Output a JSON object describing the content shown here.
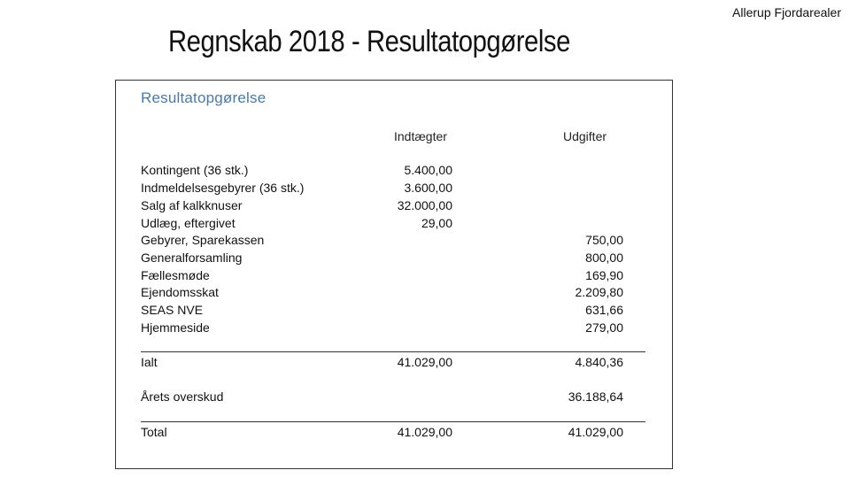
{
  "header": {
    "organization": "Allerup Fjordarealer",
    "title": "Regnskab 2018 - Resultatopgørelse"
  },
  "document": {
    "heading": "Resultatopgørelse",
    "columns": {
      "income": "Indtægter",
      "expenses": "Udgifter"
    },
    "rows": [
      {
        "label": "Kontingent (36 stk.)",
        "income": "5.400,00",
        "expense": ""
      },
      {
        "label": "Indmeldelsesgebyrer (36 stk.)",
        "income": "3.600,00",
        "expense": ""
      },
      {
        "label": "Salg af kalkknuser",
        "income": "32.000,00",
        "expense": ""
      },
      {
        "label": "Udlæg, eftergivet",
        "income": "29,00",
        "expense": ""
      },
      {
        "label": "Gebyrer, Sparekassen",
        "income": "",
        "expense": "750,00"
      },
      {
        "label": "Generalforsamling",
        "income": "",
        "expense": "800,00"
      },
      {
        "label": "Fællesmøde",
        "income": "",
        "expense": "169,90"
      },
      {
        "label": "Ejendomsskat",
        "income": "",
        "expense": "2.209,80"
      },
      {
        "label": "SEAS NVE",
        "income": "",
        "expense": "631,66"
      },
      {
        "label": "Hjemmeside",
        "income": "",
        "expense": "279,00"
      }
    ],
    "ialt": {
      "label": "Ialt",
      "income": "41.029,00",
      "expense": "4.840,36"
    },
    "surplus": {
      "label": "Årets overskud",
      "income": "",
      "expense": "36.188,64"
    },
    "total": {
      "label": "Total",
      "income": "41.029,00",
      "expense": "41.029,00"
    }
  }
}
